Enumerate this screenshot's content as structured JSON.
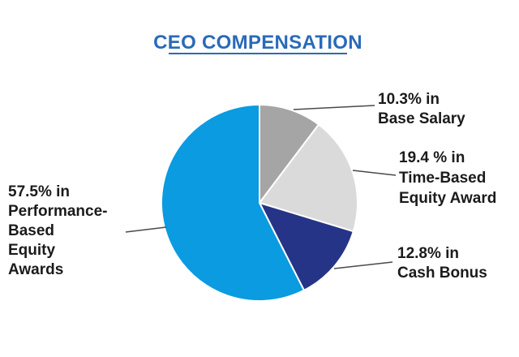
{
  "chart_data": {
    "type": "pie",
    "title": "CEO COMPENSATION",
    "title_color": "#2a6ab8",
    "slices": [
      {
        "name": "Base Salary",
        "value": 10.3,
        "color": "#a5a5a5",
        "label_lines": [
          "10.3% in",
          "Base Salary"
        ]
      },
      {
        "name": "Time-Based Equity Award",
        "value": 19.4,
        "color": "#dadada",
        "label_lines": [
          "19.4 % in",
          "Time-Based",
          "Equity Award"
        ]
      },
      {
        "name": "Cash Bonus",
        "value": 12.8,
        "color": "#253486",
        "label_lines": [
          "12.8% in",
          "Cash Bonus"
        ]
      },
      {
        "name": "Performance-Based Equity Awards",
        "value": 57.5,
        "color": "#0a9be0",
        "label_lines": [
          "57.5% in",
          "Performance-",
          "Based",
          "Equity",
          "Awards"
        ]
      }
    ]
  }
}
